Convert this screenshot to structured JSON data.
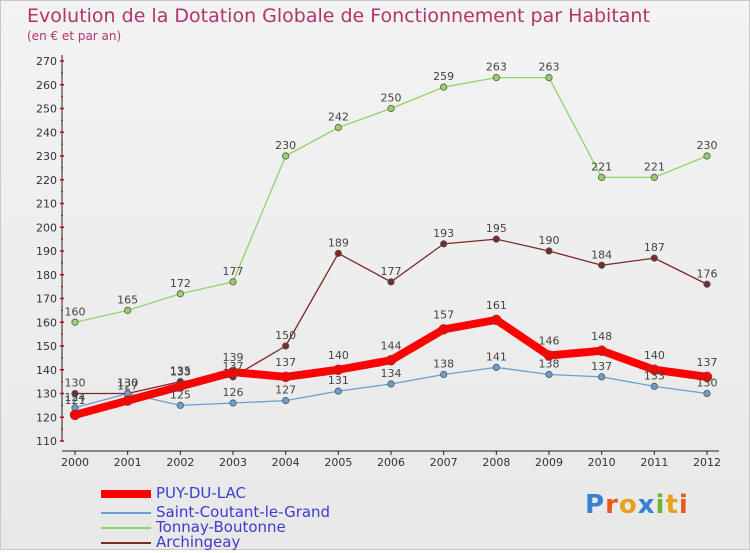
{
  "title": "Evolution de la Dotation Globale de Fonctionnement par Habitant",
  "subtitle": "(en € et par an)",
  "logo": "Proxiti",
  "chart_data": {
    "type": "line",
    "title": "Evolution de la Dotation Globale de Fonctionnement par Habitant",
    "subtitle": "(en € et par an)",
    "xlabel": "",
    "ylabel": "",
    "categories": [
      "2000",
      "2001",
      "2002",
      "2003",
      "2004",
      "2005",
      "2006",
      "2007",
      "2008",
      "2009",
      "2010",
      "2011",
      "2012"
    ],
    "ylim": [
      110,
      270
    ],
    "yticks": [
      110,
      120,
      130,
      140,
      150,
      160,
      170,
      180,
      190,
      200,
      210,
      220,
      230,
      240,
      250,
      260,
      270
    ],
    "grid": false,
    "legend_position": "bottom-left",
    "series": [
      {
        "name": "PUY-DU-LAC",
        "color": "#ff0000",
        "values": [
          121,
          127,
          133,
          139,
          137,
          140,
          144,
          157,
          161,
          146,
          148,
          140,
          137
        ]
      },
      {
        "name": "Saint-Coutant-le-Grand",
        "color": "#6a9fd1",
        "values": [
          124,
          130,
          125,
          126,
          127,
          131,
          134,
          138,
          141,
          138,
          137,
          133,
          130
        ]
      },
      {
        "name": "Tonnay-Boutonne",
        "color": "#93d36a",
        "values": [
          160,
          165,
          172,
          177,
          230,
          242,
          250,
          259,
          263,
          263,
          221,
          221,
          230
        ]
      },
      {
        "name": "Archingeay",
        "color": "#7a2a2a",
        "values": [
          130,
          130,
          135,
          137,
          150,
          189,
          177,
          193,
          195,
          190,
          184,
          187,
          176
        ]
      }
    ]
  }
}
